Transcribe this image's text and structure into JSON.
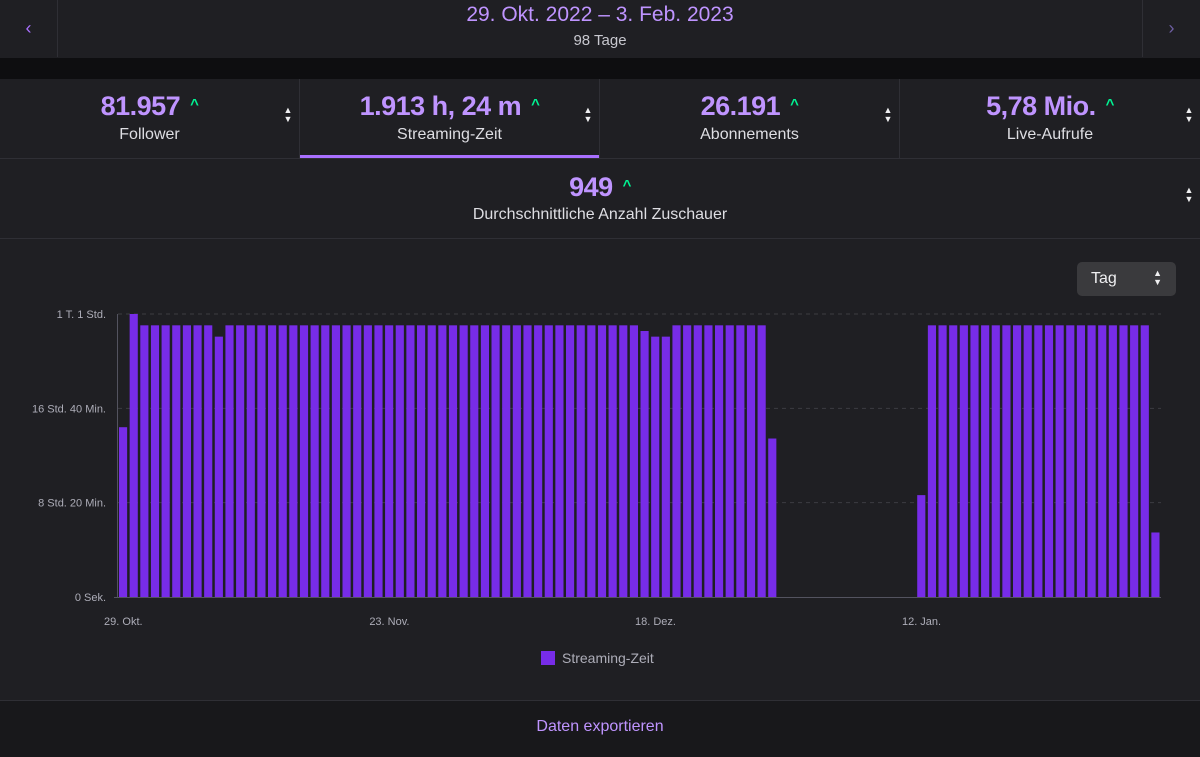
{
  "header": {
    "date_range": "29. Okt. 2022 – 3. Feb. 2023",
    "days": "98 Tage",
    "prev_icon": "chevron-left-icon",
    "next_icon": "chevron-right-icon"
  },
  "stats": [
    {
      "value": "81.957",
      "label": "Follower",
      "trend": "up"
    },
    {
      "value": "1.913 h, 24 m",
      "label": "Streaming-Zeit",
      "trend": "up"
    },
    {
      "value": "26.191",
      "label": "Abonnements",
      "trend": "up"
    },
    {
      "value": "5,78 Mio.",
      "label": "Live-Aufrufe",
      "trend": "up"
    }
  ],
  "stat_wide": {
    "value": "949",
    "label": "Durchschnittliche Anzahl Zuschauer",
    "trend": "up"
  },
  "period_select": {
    "selected": "Tag"
  },
  "colors": {
    "accent": "#a970ff",
    "bar": "#772ce8",
    "trend_up": "#00f593",
    "background": "#1f1f23"
  },
  "chart_data": {
    "type": "bar",
    "title": "",
    "xlabel": "",
    "ylabel": "",
    "ylim": [
      0,
      25
    ],
    "y_ticks": [
      {
        "value": 0,
        "label": "0 Sek."
      },
      {
        "value": 8.333,
        "label": "8 Std. 20 Min."
      },
      {
        "value": 16.667,
        "label": "16 Std. 40 Min."
      },
      {
        "value": 25,
        "label": "1 T. 1 Std."
      }
    ],
    "x_tick_labels": [
      {
        "index": 0,
        "label": "29. Okt."
      },
      {
        "index": 25,
        "label": "23. Nov."
      },
      {
        "index": 50,
        "label": "18. Dez."
      },
      {
        "index": 75,
        "label": "12. Jan."
      }
    ],
    "series": [
      {
        "name": "Streaming-Zeit",
        "unit": "hours",
        "values": [
          15,
          25,
          24,
          24,
          24,
          24,
          24,
          24,
          24,
          23,
          24,
          24,
          24,
          24,
          24,
          24,
          24,
          24,
          24,
          24,
          24,
          24,
          24,
          24,
          24,
          24,
          24,
          24,
          24,
          24,
          24,
          24,
          24,
          24,
          24,
          24,
          24,
          24,
          24,
          24,
          24,
          24,
          24,
          24,
          24,
          24,
          24,
          24,
          24,
          23.5,
          23,
          23,
          24,
          24,
          24,
          24,
          24,
          24,
          24,
          24,
          24,
          14,
          0,
          0,
          0,
          0,
          0,
          0,
          0,
          0,
          0,
          0,
          0,
          0,
          0,
          9,
          24,
          24,
          24,
          24,
          24,
          24,
          24,
          24,
          24,
          24,
          24,
          24,
          24,
          24,
          24,
          24,
          24,
          24,
          24,
          24,
          24,
          5.7
        ]
      }
    ],
    "legend": "bottom-center"
  },
  "footer": {
    "export_label": "Daten exportieren"
  }
}
